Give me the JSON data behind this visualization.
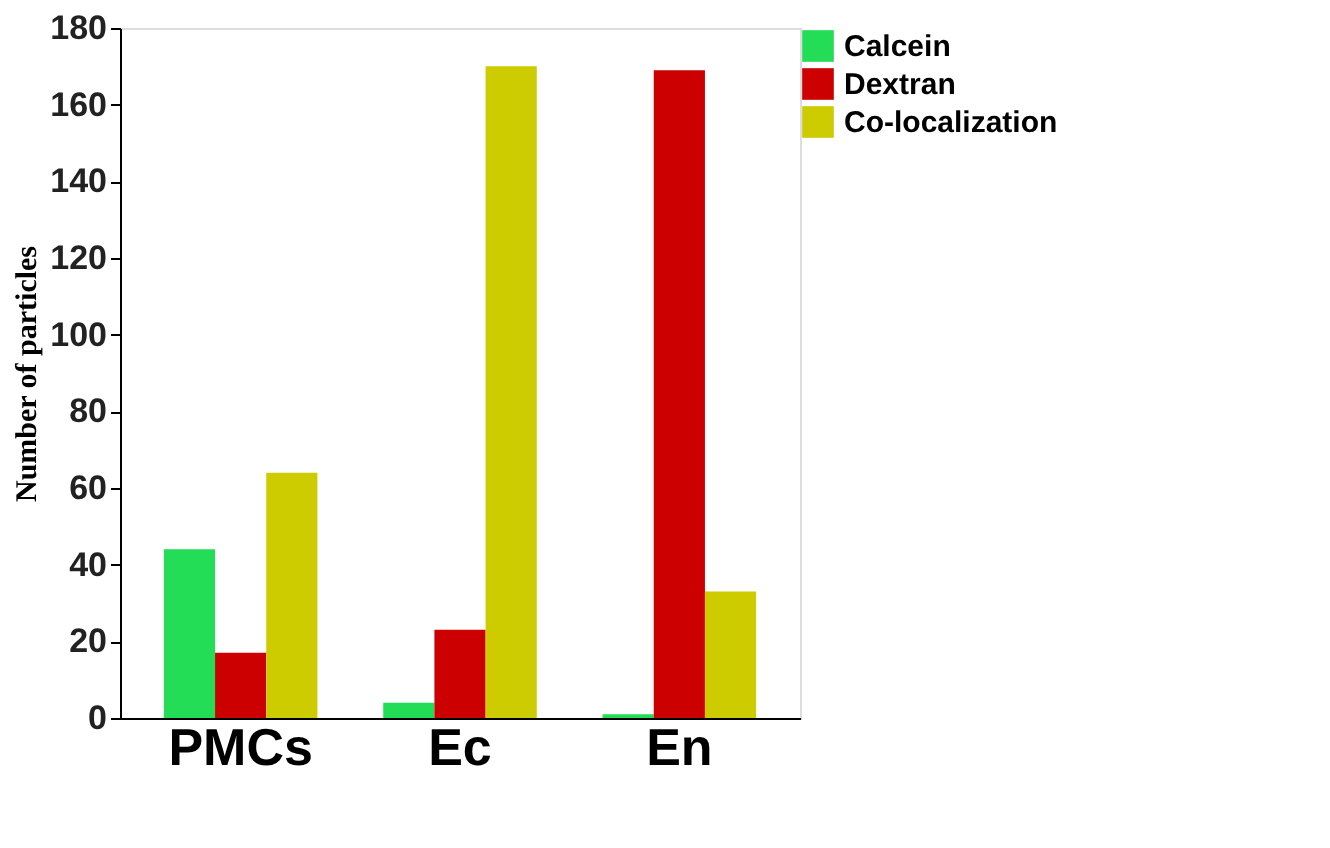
{
  "chart_data": {
    "type": "bar",
    "ylabel": "Number of particles",
    "categories": [
      "PMCs",
      "Ec",
      "En"
    ],
    "series": [
      {
        "name": "Calcein",
        "color": "#22dd55",
        "values": [
          44,
          4,
          1
        ]
      },
      {
        "name": "Dextran",
        "color": "#cc0000",
        "values": [
          17,
          23,
          169
        ]
      },
      {
        "name": "Co-localization",
        "color": "#cccc00",
        "values": [
          64,
          170,
          33
        ]
      }
    ],
    "ylim": [
      0,
      180
    ],
    "yticks": [
      0,
      20,
      40,
      60,
      80,
      100,
      120,
      140,
      160,
      180
    ],
    "grid": false,
    "legend": "top right"
  }
}
